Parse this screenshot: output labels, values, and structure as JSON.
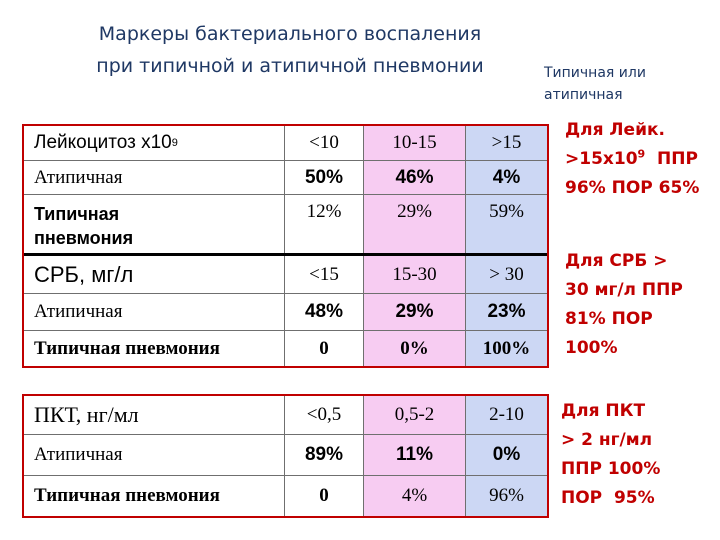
{
  "title": {
    "line1": "Маркеры бактериального воспаления",
    "line2": "при типичной и атипичной пневмонии"
  },
  "legend_note": {
    "line1": "Типичная или",
    "line2": "атипичная"
  },
  "table1": {
    "header": {
      "label": "Лейкоцитоз х10",
      "sup": "9",
      "c1": "<10",
      "c2": "10-15",
      "c3": ">15"
    },
    "row_atyp": {
      "label": "Атипичная",
      "c1": "50%",
      "c2": "46%",
      "c3": "4%"
    },
    "row_typ": {
      "label_line1": "Типичная",
      "label_line2": "пневмония",
      "c1": "12%",
      "c2": "29%",
      "c3": "59%"
    },
    "header2": {
      "label": "СРБ, мг/л",
      "c1": "<15",
      "c2": "15-30",
      "c3": "> 30"
    },
    "row_atyp2": {
      "label": "Атипичная",
      "c1": "48%",
      "c2": "29%",
      "c3": "23%"
    },
    "row_typ2": {
      "label": "Типичная пневмония",
      "c1": "0",
      "c2": "0%",
      "c3": "100%"
    }
  },
  "table2": {
    "header": {
      "label": "ПКТ, нг/мл",
      "c1": "<0,5",
      "c2": "0,5-2",
      "c3": "2-10"
    },
    "row_atyp": {
      "label": "Атипичная",
      "c1": "89%",
      "c2": "11%",
      "c3": "0%"
    },
    "row_typ": {
      "label": "Типичная пневмония",
      "c1": "0",
      "c2": "4%",
      "c3": "96%"
    }
  },
  "notes": {
    "n1": {
      "line1": "Для Лейк.",
      "line2_pre": ">15x10",
      "line2_sup": "9",
      "line2_post": "  ППР",
      "line3": "96% ПОР 65%"
    },
    "n2": {
      "line1": "Для СРБ >",
      "line2": "30 мг/л ППР",
      "line3": "81% ПОР",
      "line4": "100%"
    },
    "n3": {
      "line1": "Для ПКТ",
      "line2": "> 2 нг/мл",
      "line3": "ППР 100%",
      "line4": "ПОР  95%"
    }
  },
  "colors": {
    "title": "#1f3864",
    "accent_red": "#c00000",
    "col_pink": "#f7ccf2",
    "col_blue": "#ccd7f4"
  }
}
